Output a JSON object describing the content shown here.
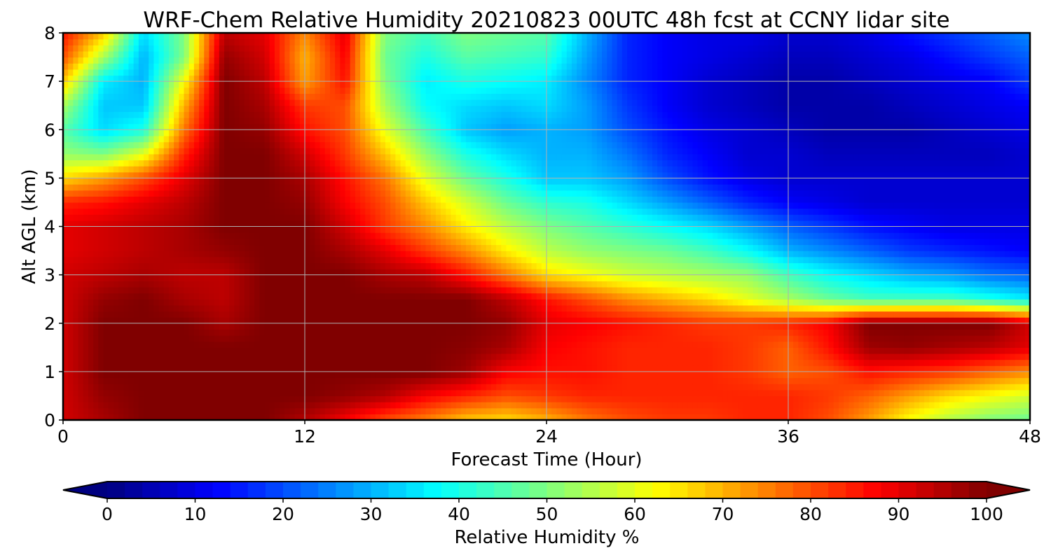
{
  "chart_data": {
    "type": "heatmap",
    "title": "WRF-Chem Relative Humidity 20210823 00UTC 48h fcst at CCNY lidar site",
    "xlabel": "Forecast Time (Hour)",
    "ylabel": "Alt AGL (km)",
    "xlim": [
      0,
      48
    ],
    "ylim": [
      0,
      8
    ],
    "xticks": [
      0,
      12,
      24,
      36,
      48
    ],
    "yticks": [
      0,
      1,
      2,
      3,
      4,
      5,
      6,
      7,
      8
    ],
    "grid": true,
    "colormap": "jet",
    "colorbar": {
      "label": "Relative Humidity %",
      "ticks": [
        0,
        10,
        20,
        30,
        40,
        50,
        60,
        70,
        80,
        90,
        100
      ],
      "range": [
        0,
        100
      ],
      "extend": "both",
      "orientation": "horizontal",
      "placement": "below"
    },
    "x": [
      0,
      2,
      4,
      6,
      8,
      10,
      12,
      14,
      16,
      18,
      20,
      22,
      24,
      26,
      28,
      30,
      32,
      34,
      36,
      38,
      40,
      42,
      44,
      46,
      48
    ],
    "y": [
      0,
      0.5,
      1,
      1.5,
      2,
      2.5,
      3,
      3.5,
      4,
      4.5,
      5,
      5.5,
      6,
      6.5,
      7,
      7.5,
      8
    ],
    "z": [
      [
        92,
        96,
        100,
        100,
        100,
        100,
        95,
        88,
        80,
        75,
        68,
        66,
        70,
        76,
        80,
        82,
        82,
        84,
        84,
        80,
        72,
        62,
        55,
        50,
        48
      ],
      [
        92,
        98,
        100,
        100,
        100,
        100,
        100,
        98,
        95,
        88,
        84,
        80,
        82,
        84,
        84,
        84,
        84,
        84,
        84,
        82,
        78,
        72,
        66,
        62,
        58
      ],
      [
        92,
        100,
        100,
        100,
        100,
        100,
        100,
        100,
        100,
        100,
        97,
        88,
        86,
        86,
        84,
        84,
        84,
        82,
        78,
        80,
        86,
        84,
        82,
        78,
        74
      ],
      [
        92,
        100,
        100,
        100,
        100,
        100,
        100,
        100,
        100,
        100,
        99,
        96,
        88,
        86,
        84,
        84,
        84,
        82,
        78,
        86,
        97,
        98,
        96,
        94,
        90
      ],
      [
        92,
        100,
        100,
        100,
        96,
        100,
        100,
        100,
        100,
        100,
        100,
        98,
        90,
        88,
        86,
        84,
        82,
        82,
        84,
        88,
        100,
        100,
        100,
        100,
        92
      ],
      [
        92,
        98,
        100,
        96,
        94,
        100,
        100,
        100,
        100,
        100,
        100,
        94,
        86,
        80,
        74,
        70,
        66,
        60,
        54,
        48,
        44,
        44,
        44,
        40,
        36
      ],
      [
        92,
        94,
        96,
        94,
        94,
        100,
        100,
        100,
        96,
        94,
        86,
        76,
        66,
        62,
        58,
        56,
        54,
        52,
        44,
        38,
        34,
        30,
        28,
        24,
        22
      ],
      [
        90,
        92,
        94,
        96,
        98,
        100,
        100,
        96,
        90,
        82,
        74,
        64,
        56,
        52,
        50,
        48,
        44,
        38,
        30,
        26,
        22,
        18,
        16,
        14,
        12
      ],
      [
        90,
        92,
        94,
        96,
        100,
        100,
        100,
        92,
        82,
        74,
        64,
        56,
        50,
        46,
        42,
        38,
        34,
        28,
        22,
        18,
        14,
        12,
        10,
        10,
        10
      ],
      [
        84,
        86,
        90,
        94,
        100,
        100,
        98,
        88,
        80,
        68,
        58,
        48,
        42,
        40,
        34,
        28,
        22,
        16,
        12,
        10,
        8,
        8,
        8,
        8,
        8
      ],
      [
        66,
        72,
        80,
        90,
        100,
        100,
        96,
        86,
        76,
        60,
        48,
        40,
        32,
        32,
        28,
        20,
        14,
        10,
        8,
        8,
        8,
        8,
        8,
        8,
        8
      ],
      [
        52,
        50,
        60,
        84,
        100,
        100,
        92,
        82,
        68,
        52,
        40,
        34,
        30,
        30,
        24,
        16,
        12,
        8,
        8,
        6,
        6,
        6,
        6,
        6,
        8
      ],
      [
        46,
        34,
        40,
        76,
        100,
        98,
        86,
        80,
        60,
        44,
        32,
        28,
        30,
        28,
        20,
        14,
        10,
        8,
        6,
        4,
        4,
        4,
        6,
        8,
        10
      ],
      [
        54,
        32,
        32,
        70,
        100,
        96,
        82,
        80,
        54,
        38,
        34,
        32,
        34,
        28,
        18,
        12,
        8,
        6,
        4,
        4,
        4,
        6,
        8,
        10,
        12
      ],
      [
        68,
        36,
        30,
        62,
        100,
        94,
        72,
        86,
        50,
        36,
        40,
        38,
        36,
        26,
        16,
        12,
        8,
        6,
        4,
        4,
        6,
        8,
        10,
        12,
        18
      ],
      [
        80,
        54,
        30,
        50,
        98,
        92,
        70,
        88,
        48,
        40,
        46,
        44,
        42,
        28,
        16,
        12,
        10,
        8,
        6,
        6,
        8,
        10,
        14,
        18,
        22
      ],
      [
        86,
        68,
        34,
        50,
        94,
        90,
        74,
        90,
        50,
        44,
        50,
        48,
        46,
        30,
        16,
        12,
        10,
        10,
        8,
        8,
        10,
        14,
        18,
        22,
        26
      ]
    ]
  }
}
